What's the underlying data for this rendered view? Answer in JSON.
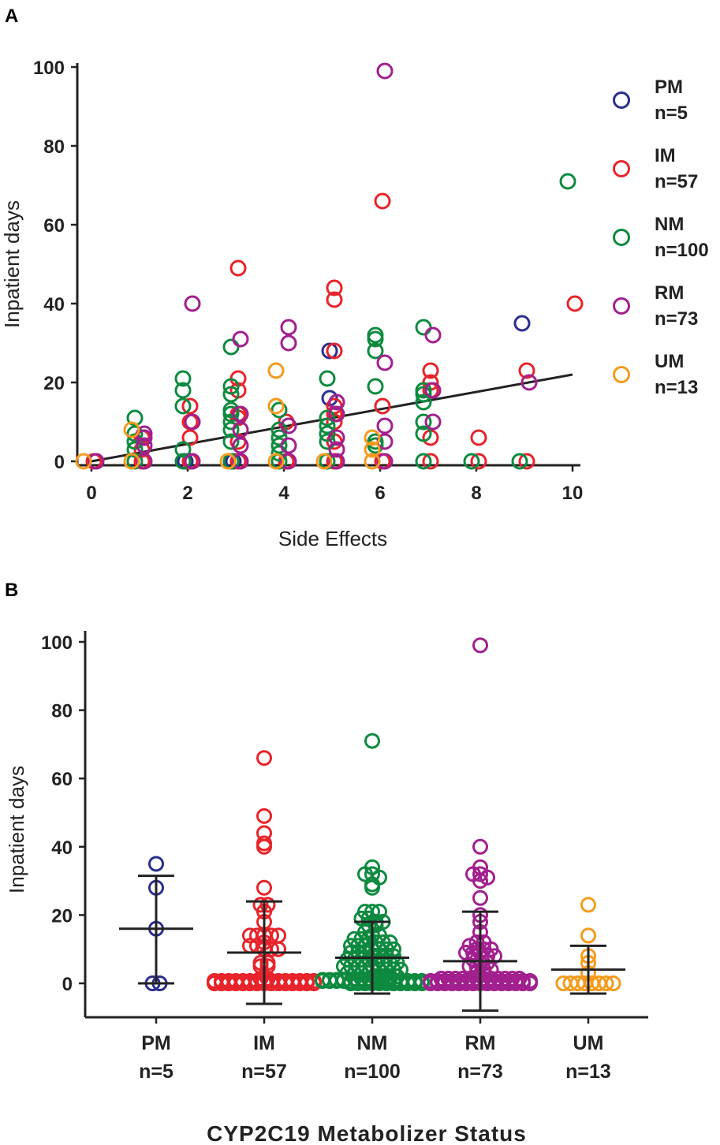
{
  "colors": {
    "PM": "#2b2d8e",
    "IM": "#e8232a",
    "NM": "#0d8a3f",
    "RM": "#a21f8e",
    "UM": "#f59b1c",
    "axis": "#222222"
  },
  "chart_data": [
    {
      "id": "A",
      "panel_label": "A",
      "type": "scatter",
      "title": "",
      "xlabel": "Side Effects",
      "ylabel": "Inpatient days",
      "xlim": [
        0,
        10
      ],
      "ylim": [
        0,
        100
      ],
      "xticks": [
        0,
        2,
        4,
        6,
        8,
        10
      ],
      "yticks": [
        0,
        20,
        40,
        60,
        80,
        100
      ],
      "legend": [
        {
          "name": "PM",
          "n": "n=5"
        },
        {
          "name": "IM",
          "n": "n=57"
        },
        {
          "name": "NM",
          "n": "n=100"
        },
        {
          "name": "RM",
          "n": "n=73"
        },
        {
          "name": "UM",
          "n": "n=13"
        }
      ],
      "regression_line": {
        "x": [
          0,
          10
        ],
        "y": [
          0,
          22
        ]
      },
      "series": [
        {
          "name": "PM",
          "points": [
            [
              3,
              0
            ],
            [
              5,
              16
            ],
            [
              5,
              28
            ],
            [
              9,
              35
            ],
            [
              2,
              0
            ]
          ]
        },
        {
          "name": "IM",
          "points": [
            [
              0,
              0
            ],
            [
              1,
              0
            ],
            [
              1,
              3
            ],
            [
              1,
              6
            ],
            [
              2,
              0
            ],
            [
              2,
              6
            ],
            [
              2,
              10
            ],
            [
              2,
              14
            ],
            [
              3,
              0
            ],
            [
              3,
              5
            ],
            [
              3,
              11
            ],
            [
              3,
              12
            ],
            [
              3,
              18
            ],
            [
              3,
              21
            ],
            [
              3,
              49
            ],
            [
              4,
              0
            ],
            [
              4,
              10
            ],
            [
              5,
              0
            ],
            [
              5,
              5
            ],
            [
              5,
              10
            ],
            [
              5,
              12
            ],
            [
              5,
              14
            ],
            [
              5,
              28
            ],
            [
              5,
              41
            ],
            [
              5,
              44
            ],
            [
              6,
              0
            ],
            [
              6,
              14
            ],
            [
              6,
              66
            ],
            [
              7,
              0
            ],
            [
              7,
              6
            ],
            [
              7,
              18
            ],
            [
              7,
              20
            ],
            [
              7,
              23
            ],
            [
              8,
              0
            ],
            [
              8,
              6
            ],
            [
              9,
              0
            ],
            [
              9,
              23
            ],
            [
              10,
              40
            ]
          ]
        },
        {
          "name": "NM",
          "points": [
            [
              1,
              0
            ],
            [
              1,
              3
            ],
            [
              1,
              5
            ],
            [
              1,
              7
            ],
            [
              1,
              11
            ],
            [
              2,
              0
            ],
            [
              2,
              3
            ],
            [
              2,
              14
            ],
            [
              2,
              18
            ],
            [
              2,
              21
            ],
            [
              3,
              0
            ],
            [
              3,
              5
            ],
            [
              3,
              8
            ],
            [
              3,
              10
            ],
            [
              3,
              12
            ],
            [
              3,
              13
            ],
            [
              3,
              17
            ],
            [
              3,
              19
            ],
            [
              3,
              29
            ],
            [
              4,
              0
            ],
            [
              4,
              2
            ],
            [
              4,
              4
            ],
            [
              4,
              6
            ],
            [
              4,
              8
            ],
            [
              4,
              13
            ],
            [
              5,
              0
            ],
            [
              5,
              5
            ],
            [
              5,
              7
            ],
            [
              5,
              9
            ],
            [
              5,
              11
            ],
            [
              5,
              21
            ],
            [
              6,
              4
            ],
            [
              6,
              5
            ],
            [
              6,
              19
            ],
            [
              6,
              28
            ],
            [
              6,
              31
            ],
            [
              6,
              32
            ],
            [
              7,
              0
            ],
            [
              7,
              7
            ],
            [
              7,
              10
            ],
            [
              7,
              15
            ],
            [
              7,
              17
            ],
            [
              7,
              18
            ],
            [
              7,
              34
            ],
            [
              8,
              0
            ],
            [
              9,
              0
            ],
            [
              10,
              71
            ]
          ]
        },
        {
          "name": "RM",
          "points": [
            [
              0,
              0
            ],
            [
              1,
              0
            ],
            [
              1,
              4
            ],
            [
              1,
              6
            ],
            [
              1,
              7
            ],
            [
              2,
              0
            ],
            [
              2,
              10
            ],
            [
              2,
              40
            ],
            [
              3,
              0
            ],
            [
              3,
              4
            ],
            [
              3,
              8
            ],
            [
              3,
              12
            ],
            [
              3,
              31
            ],
            [
              4,
              0
            ],
            [
              4,
              4
            ],
            [
              4,
              9
            ],
            [
              4,
              30
            ],
            [
              4,
              34
            ],
            [
              5,
              0
            ],
            [
              5,
              3
            ],
            [
              5,
              6
            ],
            [
              5,
              12
            ],
            [
              5,
              15
            ],
            [
              6,
              0
            ],
            [
              6,
              5
            ],
            [
              6,
              9
            ],
            [
              6,
              25
            ],
            [
              6,
              99
            ],
            [
              7,
              10
            ],
            [
              7,
              18
            ],
            [
              7,
              32
            ],
            [
              9,
              20
            ]
          ]
        },
        {
          "name": "UM",
          "points": [
            [
              0,
              0
            ],
            [
              1,
              0
            ],
            [
              1,
              8
            ],
            [
              3,
              0
            ],
            [
              4,
              0
            ],
            [
              4,
              14
            ],
            [
              4,
              23
            ],
            [
              5,
              0
            ],
            [
              6,
              0
            ],
            [
              6,
              6
            ],
            [
              6,
              3
            ]
          ]
        }
      ]
    },
    {
      "id": "B",
      "panel_label": "B",
      "type": "scatter",
      "title": "",
      "xlabel": "CYP2C19 Metabolizer Status",
      "ylabel": "Inpatient days",
      "ylim": [
        -10,
        100
      ],
      "yticks": [
        0,
        20,
        40,
        60,
        80,
        100
      ],
      "categories": [
        {
          "name": "PM",
          "n": "n=5",
          "mean": 16,
          "sd_low": 0,
          "sd_high": 31.5,
          "values": [
            35,
            28,
            16,
            0,
            0
          ]
        },
        {
          "name": "IM",
          "n": "n=57",
          "mean": 9,
          "sd_low": -6,
          "sd_high": 24,
          "values": [
            66,
            49,
            44,
            41,
            40,
            28,
            23,
            23,
            21,
            18,
            14,
            14,
            14,
            14,
            14,
            12,
            11,
            11,
            10,
            10,
            10,
            6,
            6,
            5,
            5,
            0,
            0,
            0,
            0,
            0,
            0,
            0,
            0,
            0,
            0,
            0,
            0,
            0,
            0,
            0,
            0,
            0,
            0,
            0,
            0,
            0,
            0,
            0,
            0,
            0,
            0,
            0,
            0,
            0,
            0,
            0,
            0
          ]
        },
        {
          "name": "NM",
          "n": "n=100",
          "mean": 7.5,
          "sd_low": -3,
          "sd_high": 18,
          "values": [
            71,
            34,
            32,
            32,
            31,
            29,
            28,
            21,
            21,
            21,
            19,
            19,
            18,
            18,
            17,
            17,
            15,
            14,
            14,
            13,
            13,
            13,
            12,
            12,
            12,
            11,
            11,
            11,
            10,
            10,
            10,
            10,
            9,
            9,
            9,
            8,
            8,
            8,
            8,
            7,
            7,
            7,
            7,
            6,
            6,
            6,
            6,
            5,
            5,
            5,
            5,
            5,
            4,
            4,
            4,
            4,
            3,
            3,
            3,
            3,
            2,
            2,
            2,
            2,
            1,
            1,
            1,
            1,
            0,
            0,
            0,
            0,
            0,
            0,
            0,
            0,
            0,
            0,
            0,
            0,
            0,
            0,
            0,
            0,
            0,
            0,
            0,
            0,
            0,
            0,
            0,
            0,
            0,
            0,
            0,
            0,
            0,
            0,
            0,
            0
          ]
        },
        {
          "name": "RM",
          "n": "n=73",
          "mean": 6.5,
          "sd_low": -8,
          "sd_high": 21,
          "values": [
            99,
            40,
            34,
            32,
            32,
            31,
            30,
            25,
            20,
            18,
            15,
            12,
            12,
            11,
            10,
            10,
            10,
            9,
            9,
            9,
            8,
            8,
            7,
            6,
            6,
            5,
            5,
            4,
            4,
            3,
            3,
            0,
            0,
            0,
            0,
            0,
            0,
            0,
            0,
            0,
            0,
            0,
            0,
            0,
            0,
            0,
            0,
            0,
            0,
            0,
            0,
            0,
            0,
            0,
            0,
            0,
            0,
            0,
            0,
            0,
            0,
            0,
            0,
            0,
            0,
            0,
            0,
            0,
            0,
            0,
            0,
            0,
            0
          ]
        },
        {
          "name": "UM",
          "n": "n=13",
          "mean": 4,
          "sd_low": -3,
          "sd_high": 11,
          "values": [
            23,
            14,
            8,
            6,
            3,
            0,
            0,
            0,
            0,
            0,
            0,
            0,
            0
          ]
        }
      ]
    }
  ]
}
